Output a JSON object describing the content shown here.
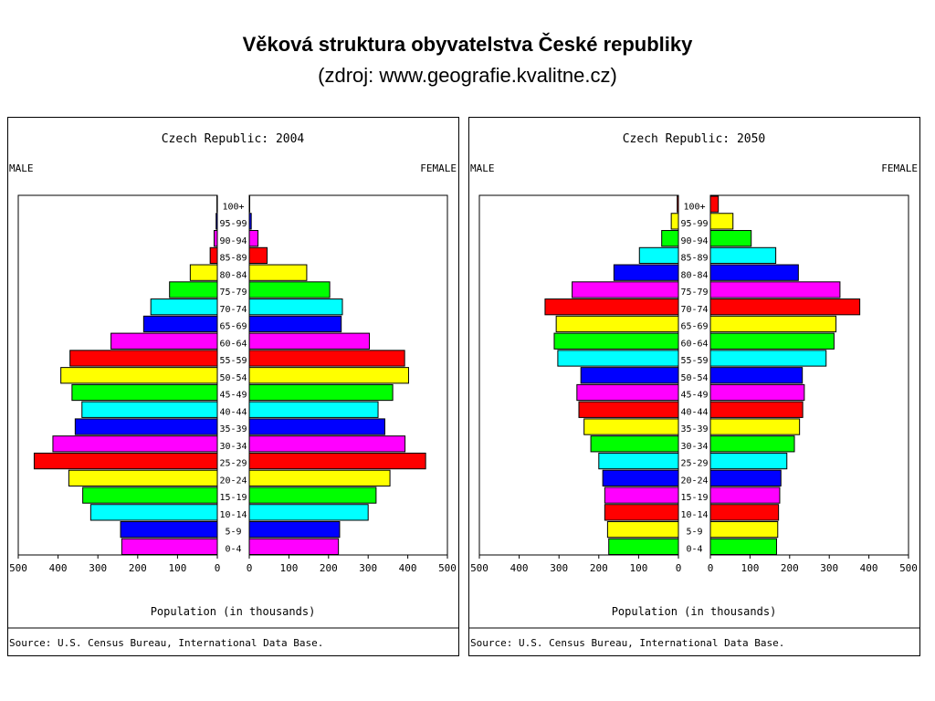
{
  "slide": {
    "title": "Věková struktura obyvatelstva České republiky",
    "subtitle": "(zdroj: www.geografie.kvalitne.cz)"
  },
  "chart_data": [
    {
      "type": "bar",
      "subtype": "population-pyramid",
      "title": "Czech Republic: 2004",
      "left_label": "MALE",
      "right_label": "FEMALE",
      "xlabel": "Population (in thousands)",
      "source": "Source: U.S. Census Bureau, International Data Base.",
      "xlim": [
        0,
        500
      ],
      "ticks_left": [
        "500",
        "400",
        "300",
        "200",
        "100",
        "0"
      ],
      "ticks_right": [
        "0",
        "100",
        "200",
        "300",
        "400",
        "500"
      ],
      "categories": [
        "0-4",
        "5-9",
        "10-14",
        "15-19",
        "20-24",
        "25-29",
        "30-34",
        "35-39",
        "40-44",
        "45-49",
        "50-54",
        "55-59",
        "60-64",
        "65-69",
        "70-74",
        "75-79",
        "80-84",
        "85-89",
        "90-94",
        "95-99",
        "100+"
      ],
      "colors": [
        "#ff00ff",
        "#0000ff",
        "#00ffff",
        "#00ff00",
        "#ffff00",
        "#ff0000",
        "#ff00ff",
        "#0000ff",
        "#00ffff",
        "#00ff00",
        "#ffff00",
        "#ff0000",
        "#ff00ff",
        "#0000ff",
        "#00ffff",
        "#00ff00",
        "#ffff00",
        "#ff0000",
        "#ff00ff",
        "#0000ff",
        "#00ffff"
      ],
      "series": [
        {
          "name": "MALE",
          "values": [
            240,
            243,
            318,
            338,
            373,
            460,
            413,
            357,
            340,
            365,
            393,
            370,
            267,
            185,
            167,
            120,
            68,
            18,
            8,
            3,
            1
          ]
        },
        {
          "name": "FEMALE",
          "values": [
            225,
            228,
            300,
            320,
            355,
            445,
            393,
            342,
            325,
            362,
            402,
            392,
            303,
            232,
            235,
            203,
            145,
            45,
            22,
            5,
            1
          ]
        }
      ]
    },
    {
      "type": "bar",
      "subtype": "population-pyramid",
      "title": "Czech Republic: 2050",
      "left_label": "MALE",
      "right_label": "FEMALE",
      "xlabel": "Population (in thousands)",
      "source": "Source: U.S. Census Bureau, International Data Base.",
      "xlim": [
        0,
        500
      ],
      "ticks_left": [
        "500",
        "400",
        "300",
        "200",
        "100",
        "0"
      ],
      "ticks_right": [
        "0",
        "100",
        "200",
        "300",
        "400",
        "500"
      ],
      "categories": [
        "0-4",
        "5-9",
        "10-14",
        "15-19",
        "20-24",
        "25-29",
        "30-34",
        "35-39",
        "40-44",
        "45-49",
        "50-54",
        "55-59",
        "60-64",
        "65-69",
        "70-74",
        "75-79",
        "80-84",
        "85-89",
        "90-94",
        "95-99",
        "100+"
      ],
      "colors": [
        "#00ff00",
        "#ffff00",
        "#ff0000",
        "#ff00ff",
        "#0000ff",
        "#00ffff",
        "#00ff00",
        "#ffff00",
        "#ff0000",
        "#ff00ff",
        "#0000ff",
        "#00ffff",
        "#00ff00",
        "#ffff00",
        "#ff0000",
        "#ff00ff",
        "#0000ff",
        "#00ffff",
        "#00ff00",
        "#ffff00",
        "#ff0000"
      ],
      "series": [
        {
          "name": "MALE",
          "values": [
            175,
            178,
            185,
            185,
            190,
            200,
            220,
            237,
            250,
            255,
            245,
            303,
            312,
            307,
            335,
            267,
            162,
            98,
            42,
            18,
            3
          ]
        },
        {
          "name": "FEMALE",
          "values": [
            167,
            170,
            172,
            175,
            178,
            193,
            212,
            225,
            233,
            237,
            232,
            292,
            312,
            317,
            377,
            327,
            222,
            165,
            103,
            57,
            20
          ]
        }
      ]
    }
  ]
}
